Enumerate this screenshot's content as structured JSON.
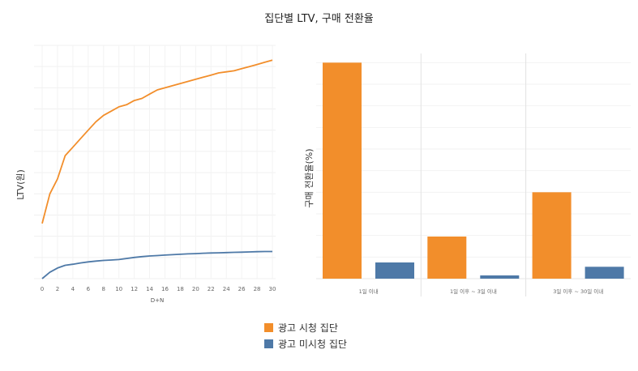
{
  "title": "집단별 LTV, 구매 전환율",
  "colors": {
    "ad_view": "#f28e2b",
    "no_ad_view": "#4e79a7"
  },
  "legend": [
    {
      "label": "광고 시청 집단",
      "color": "#f28e2b"
    },
    {
      "label": "광고 미시청 집단",
      "color": "#4e79a7"
    }
  ],
  "chart_data": [
    {
      "type": "line",
      "xlabel": "D+N",
      "ylabel": "LTV(원)",
      "xlim": [
        0,
        30
      ],
      "xticks": [
        0,
        2,
        4,
        6,
        8,
        10,
        12,
        14,
        16,
        18,
        20,
        22,
        24,
        26,
        28,
        30
      ],
      "grid": true,
      "x": [
        0,
        1,
        2,
        3,
        4,
        5,
        6,
        7,
        8,
        9,
        10,
        11,
        12,
        13,
        14,
        15,
        16,
        17,
        18,
        19,
        20,
        21,
        22,
        23,
        24,
        25,
        26,
        27,
        28,
        29,
        30
      ],
      "series": [
        {
          "name": "광고 시청 집단",
          "color": "#f28e2b",
          "values": [
            26,
            40,
            47,
            58,
            62,
            66,
            70,
            74,
            77,
            79,
            81,
            82,
            84,
            85,
            87,
            89,
            90,
            91,
            92,
            93,
            94,
            95,
            96,
            97,
            97.5,
            98,
            99,
            100,
            101,
            102,
            103
          ]
        },
        {
          "name": "광고 미시청 집단",
          "color": "#4e79a7",
          "values": [
            0,
            3,
            5,
            6.3,
            6.8,
            7.4,
            7.9,
            8.3,
            8.6,
            8.8,
            9,
            9.5,
            10,
            10.4,
            10.7,
            10.9,
            11.1,
            11.3,
            11.5,
            11.7,
            11.8,
            12,
            12.1,
            12.2,
            12.3,
            12.4,
            12.5,
            12.6,
            12.7,
            12.8,
            12.8
          ]
        }
      ]
    },
    {
      "type": "bar",
      "ylabel": "구매 전환율(%)",
      "categories": [
        "1일 이내",
        "1일 이후 ~ 3일 이내",
        "3일 이후 ~ 30일 이내"
      ],
      "grid": true,
      "series": [
        {
          "name": "광고 시청 집단",
          "color": "#f28e2b",
          "values": [
            100,
            19.5,
            40
          ]
        },
        {
          "name": "광고 미시청 집단",
          "color": "#4e79a7",
          "values": [
            7.5,
            1.5,
            5.5
          ]
        }
      ]
    }
  ]
}
